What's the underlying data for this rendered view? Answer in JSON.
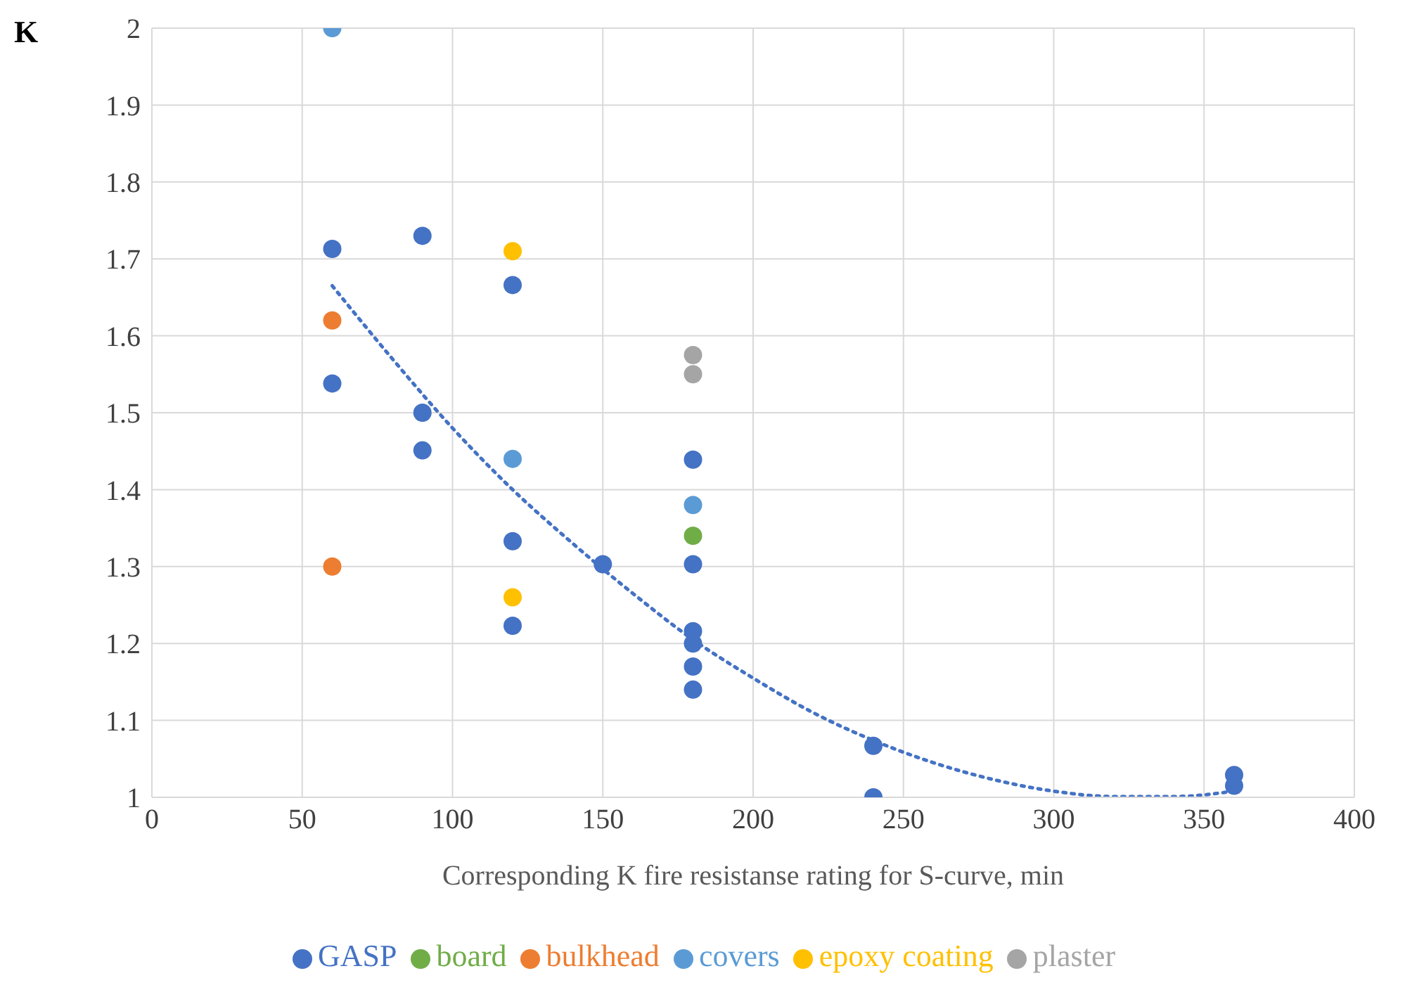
{
  "chart_data": {
    "type": "scatter",
    "xlabel": "Corresponding K fire resistanse rating for S-curve, min",
    "ylabel": "K",
    "xlim": [
      0,
      400
    ],
    "xticks": [
      0,
      50,
      100,
      150,
      200,
      250,
      300,
      350,
      400
    ],
    "ylim": [
      1,
      2
    ],
    "yticks": [
      1,
      1.1,
      1.2,
      1.3,
      1.4,
      1.5,
      1.6,
      1.7,
      1.8,
      1.9,
      2
    ],
    "grid": true,
    "legend": "bottom",
    "marker": "circle",
    "series": [
      {
        "name": "GASP",
        "color": "#4472c4",
        "x": [
          60,
          60,
          90,
          90,
          90,
          120,
          120,
          120,
          150,
          180,
          180,
          180,
          180,
          180,
          180,
          240,
          240,
          360,
          360
        ],
        "values": [
          1.713,
          1.538,
          1.73,
          1.5,
          1.451,
          1.666,
          1.333,
          1.223,
          1.303,
          1.439,
          1.303,
          1.216,
          1.2,
          1.17,
          1.14,
          1.067,
          1.0,
          1.029,
          1.015
        ]
      },
      {
        "name": "bulkhead",
        "color": "#ed7d31",
        "x": [
          60,
          60
        ],
        "values": [
          1.62,
          1.3
        ]
      },
      {
        "name": "plaster",
        "color": "#a5a5a5",
        "x": [
          180,
          180
        ],
        "values": [
          1.575,
          1.55
        ]
      },
      {
        "name": "epoxy  coating",
        "color": "#ffc000",
        "x": [
          120,
          120
        ],
        "values": [
          1.71,
          1.26
        ]
      },
      {
        "name": "covers",
        "color": "#5b9bd5",
        "x": [
          60,
          120,
          180
        ],
        "values": [
          2.0,
          1.44,
          1.38
        ]
      },
      {
        "name": "board",
        "color": "#70ad47",
        "x": [
          180
        ],
        "values": [
          1.34
        ]
      },
      {
        "type": "line",
        "color": "#4472c4",
        "line_style": "dotted",
        "marker": "none",
        "x": [
          60,
          80,
          100,
          120,
          140,
          160,
          180,
          200,
          220,
          240,
          260,
          280,
          300,
          320,
          340,
          360
        ],
        "values": [
          1.665,
          1.57,
          1.48,
          1.4,
          1.33,
          1.265,
          1.205,
          1.155,
          1.11,
          1.074,
          1.045,
          1.023,
          1.008,
          1.001,
          1.001,
          1.008
        ]
      }
    ]
  }
}
